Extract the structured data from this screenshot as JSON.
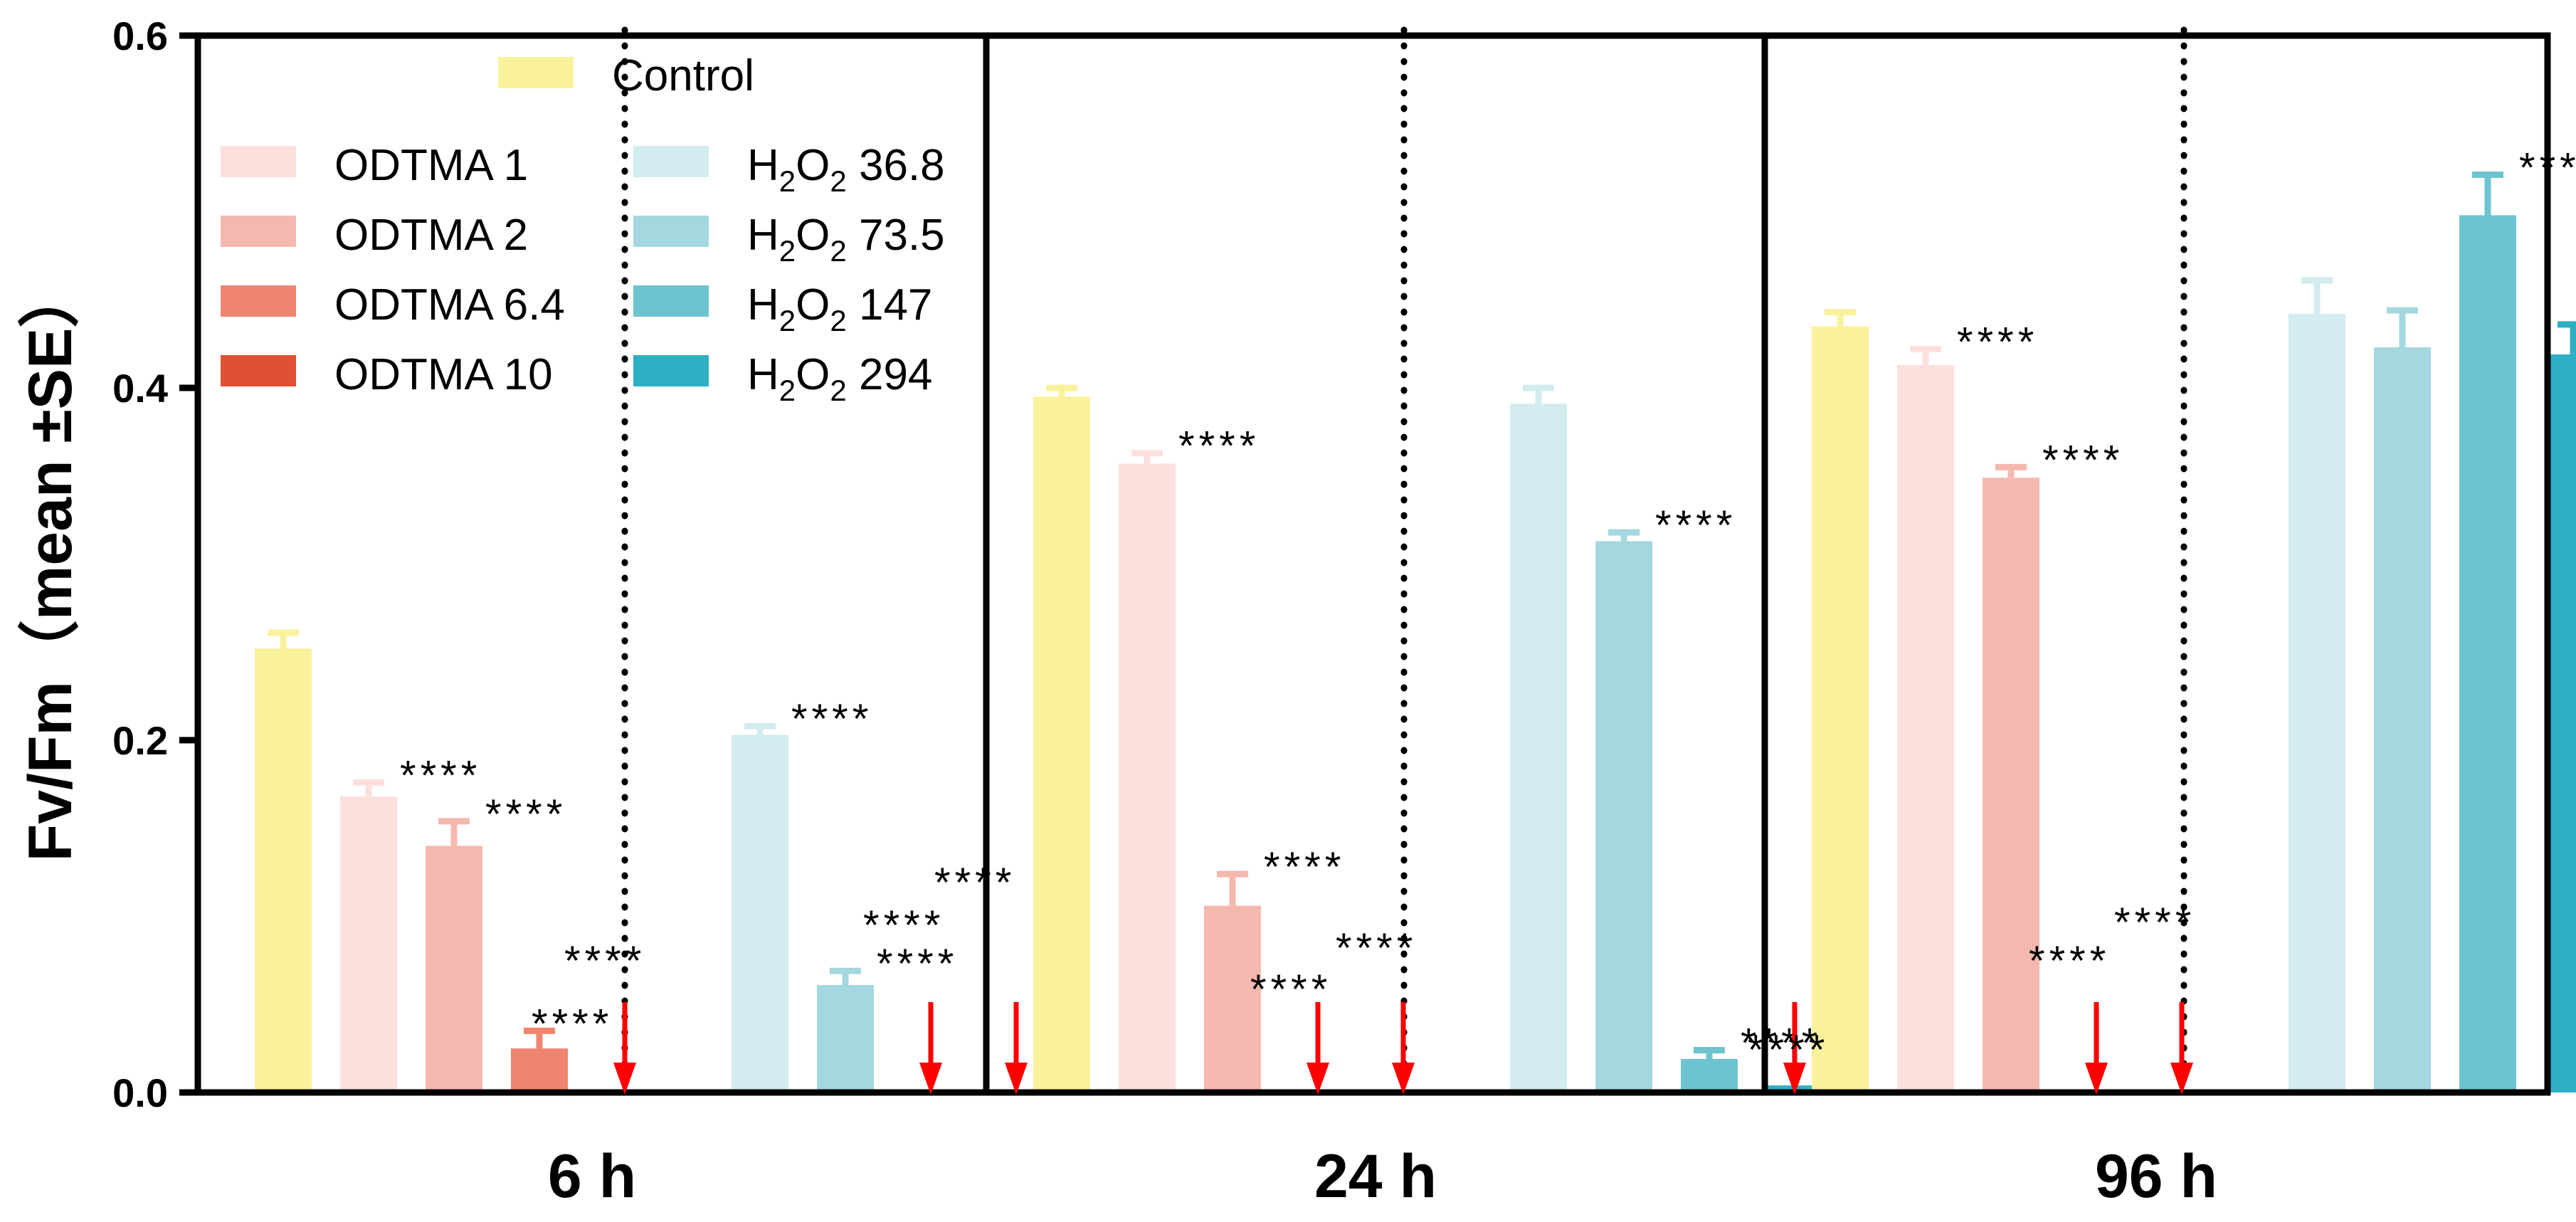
{
  "chart_data": {
    "type": "bar",
    "ylabel": "Fv/Fm（mean ±SE）",
    "ylim": [
      0,
      0.6
    ],
    "yticks": [
      {
        "value": 0.0,
        "label": "0.0"
      },
      {
        "value": 0.2,
        "label": "0.2"
      },
      {
        "value": 0.4,
        "label": "0.4"
      },
      {
        "value": 0.6,
        "label": "0.6"
      }
    ],
    "panels": [
      {
        "label": "6 h"
      },
      {
        "label": "24 h"
      },
      {
        "label": "96 h"
      }
    ],
    "legend": [
      {
        "name": "Control",
        "color": "#faf29b"
      },
      {
        "name": "ODTMA 1",
        "color": "#fde0dd"
      },
      {
        "name": "ODTMA 2",
        "color": "#f5b8ae"
      },
      {
        "name": "ODTMA 6.4",
        "color": "#ef8570"
      },
      {
        "name": "ODTMA 10",
        "color": "#df5035"
      },
      {
        "name": "H2O2 36.8",
        "base": "H",
        "sub1": "2",
        "mid": "O",
        "sub2": "2",
        "suffix": " 36.8",
        "color": "#d2ecef"
      },
      {
        "name": "H2O2 73.5",
        "base": "H",
        "sub1": "2",
        "mid": "O",
        "sub2": "2",
        "suffix": " 73.5",
        "color": "#a4d7e0"
      },
      {
        "name": "H2O2 147",
        "base": "H",
        "sub1": "2",
        "mid": "O",
        "sub2": "2",
        "suffix": " 147",
        "color": "#6ec3d1"
      },
      {
        "name": "H2O2 294",
        "base": "H",
        "sub1": "2",
        "mid": "O",
        "sub2": "2",
        "suffix": " 294",
        "color": "#2db0c4"
      }
    ],
    "series_order": [
      "Control",
      "ODTMA 1",
      "ODTMA 2",
      "ODTMA 6.4",
      "ODTMA 10",
      "H2O2 36.8",
      "H2O2 73.5",
      "H2O2 147",
      "H2O2 294"
    ],
    "values": {
      "6 h": [
        0.252,
        0.168,
        0.14,
        0.025,
        0,
        0.203,
        0.061,
        0,
        0
      ],
      "24 h": [
        0.395,
        0.357,
        0.106,
        0,
        0,
        0.391,
        0.313,
        0.019,
        0.004
      ],
      "96 h": [
        0.435,
        0.413,
        0.349,
        0,
        0,
        0.442,
        0.423,
        0.498,
        0.419
      ]
    },
    "errors": {
      "6 h": [
        0.009,
        0.008,
        0.014,
        0.01,
        0,
        0.005,
        0.008,
        0,
        0
      ],
      "24 h": [
        0.005,
        0.006,
        0.018,
        0,
        0,
        0.009,
        0.005,
        0.005,
        0
      ],
      "96 h": [
        0.008,
        0.009,
        0.006,
        0,
        0,
        0.019,
        0.021,
        0.023,
        0.017
      ]
    },
    "significance": {
      "6 h": [
        "",
        "****",
        "****",
        "****",
        "****",
        "****",
        "****",
        "****",
        "****"
      ],
      "24 h": [
        "",
        "****",
        "****",
        "****",
        "****",
        "",
        "****",
        "****",
        "****"
      ],
      "96 h": [
        "",
        "****",
        "****",
        "****",
        "****",
        "",
        "",
        "***",
        ""
      ]
    },
    "zero_arrows": {
      "6 h": [
        false,
        false,
        false,
        false,
        true,
        false,
        false,
        true,
        true
      ],
      "24 h": [
        false,
        false,
        false,
        true,
        true,
        false,
        false,
        false,
        true
      ],
      "96 h": [
        false,
        false,
        false,
        true,
        true,
        false,
        false,
        false,
        false
      ]
    },
    "arrow_color": "#ff0000"
  }
}
